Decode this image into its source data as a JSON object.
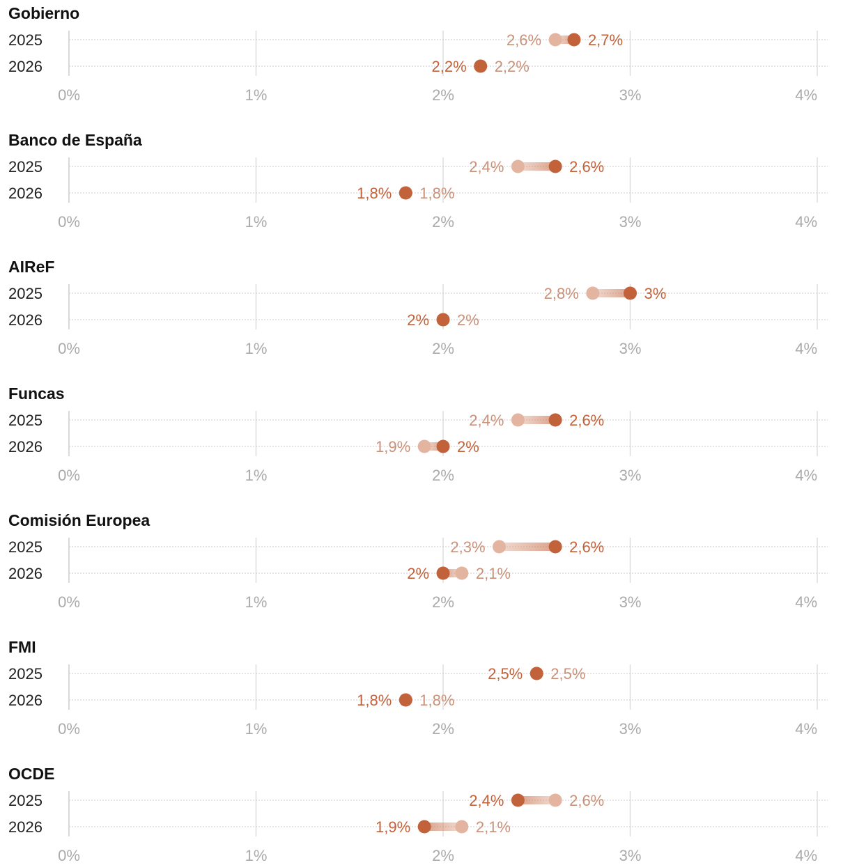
{
  "chart_data": {
    "type": "dumbbell",
    "xlim": [
      0,
      4
    ],
    "ticks": [
      0,
      1,
      2,
      3,
      4
    ],
    "tick_labels": [
      "0%",
      "1%",
      "2%",
      "3%",
      "4%"
    ],
    "years": [
      "2025",
      "2026"
    ],
    "colors": {
      "previous": "#e3b5a0",
      "current": "#c2623b",
      "previous_label": "#c8917a",
      "current_label": "#c2623b",
      "grid": "#dddddd",
      "row_line": "#cccccc",
      "zero_line": "#cccccc"
    },
    "panels": [
      {
        "title": "Gobierno",
        "rows": [
          {
            "year": "2025",
            "previous": 2.6,
            "current": 2.7,
            "previous_label": "2,6%",
            "current_label": "2,7%"
          },
          {
            "year": "2026",
            "previous": 2.2,
            "current": 2.2,
            "previous_label": "2,2%",
            "current_label": "2,2%"
          }
        ]
      },
      {
        "title": "Banco de España",
        "rows": [
          {
            "year": "2025",
            "previous": 2.4,
            "current": 2.6,
            "previous_label": "2,4%",
            "current_label": "2,6%"
          },
          {
            "year": "2026",
            "previous": 1.8,
            "current": 1.8,
            "previous_label": "1,8%",
            "current_label": "1,8%"
          }
        ]
      },
      {
        "title": "AIReF",
        "rows": [
          {
            "year": "2025",
            "previous": 2.8,
            "current": 3.0,
            "previous_label": "2,8%",
            "current_label": "3%"
          },
          {
            "year": "2026",
            "previous": 2.0,
            "current": 2.0,
            "previous_label": "2%",
            "current_label": "2%"
          }
        ]
      },
      {
        "title": "Funcas",
        "rows": [
          {
            "year": "2025",
            "previous": 2.4,
            "current": 2.6,
            "previous_label": "2,4%",
            "current_label": "2,6%"
          },
          {
            "year": "2026",
            "previous": 1.9,
            "current": 2.0,
            "previous_label": "1,9%",
            "current_label": "2%"
          }
        ]
      },
      {
        "title": "Comisión Europea",
        "rows": [
          {
            "year": "2025",
            "previous": 2.3,
            "current": 2.6,
            "previous_label": "2,3%",
            "current_label": "2,6%"
          },
          {
            "year": "2026",
            "previous": 2.1,
            "current": 2.0,
            "previous_label": "2,1%",
            "current_label": "2%"
          }
        ]
      },
      {
        "title": "FMI",
        "rows": [
          {
            "year": "2025",
            "previous": 2.5,
            "current": 2.5,
            "previous_label": "2,5%",
            "current_label": "2,5%"
          },
          {
            "year": "2026",
            "previous": 1.8,
            "current": 1.8,
            "previous_label": "1,8%",
            "current_label": "1,8%"
          }
        ]
      },
      {
        "title": "OCDE",
        "rows": [
          {
            "year": "2025",
            "previous": 2.6,
            "current": 2.4,
            "previous_label": "2,6%",
            "current_label": "2,4%"
          },
          {
            "year": "2026",
            "previous": 2.1,
            "current": 1.9,
            "previous_label": "2,1%",
            "current_label": "1,9%"
          }
        ]
      }
    ]
  }
}
